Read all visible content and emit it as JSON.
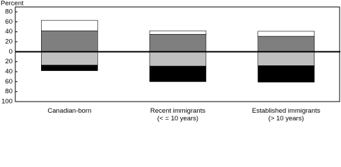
{
  "chart_data": {
    "type": "diverging-stacked-bar",
    "y_label": "Percent",
    "categories": [
      "Canadian-born",
      "Recent immigrants\n(< = 10 years)",
      "Established immigrants\n(> 10 years)"
    ],
    "series": [
      {
        "color": "#7f7f7f",
        "values": [
          42,
          35,
          31
        ]
      },
      {
        "color": "#ffffff",
        "values": [
          21,
          7,
          10
        ]
      },
      {
        "color": "#bfbfbf",
        "values": [
          -27,
          -29,
          -28
        ]
      },
      {
        "color": "#000000",
        "values": [
          -11,
          -31,
          -33
        ]
      }
    ],
    "ylim": [
      -100,
      80
    ],
    "yticks": [
      80,
      60,
      40,
      20,
      0,
      {
        "value": -20,
        "label": "20"
      },
      {
        "value": -40,
        "label": "40"
      },
      {
        "value": -60,
        "label": "60"
      },
      {
        "value": -80,
        "label": "80"
      },
      {
        "value": -100,
        "label": "100"
      }
    ],
    "grid": false
  }
}
